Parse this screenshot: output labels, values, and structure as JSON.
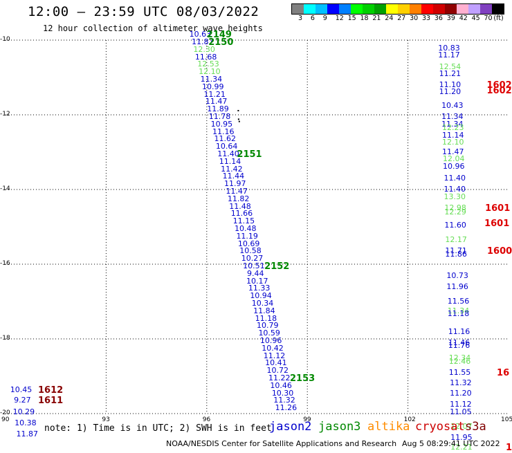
{
  "title": "12:00 – 23:59 UTC 08/03/2022",
  "subtitle": "12 hour collection of altimeter wave heights",
  "colorbar": {
    "colors": [
      "#808080",
      "#00ffff",
      "#00c0ff",
      "#0000ff",
      "#0080ff",
      "#00ff00",
      "#00d000",
      "#00a000",
      "#ffff00",
      "#ffd000",
      "#ff8000",
      "#ff0000",
      "#d00000",
      "#900000",
      "#ffb0d0",
      "#c0a0ff",
      "#8040c0",
      "#000000"
    ],
    "labels": [
      "3",
      "6",
      "9",
      "12",
      "15",
      "18",
      "21",
      "24",
      "27",
      "30",
      "33",
      "36",
      "39",
      "42",
      "45",
      "70",
      "(ft)"
    ]
  },
  "axes": {
    "y_labels": [
      "-10",
      "-12",
      "-14",
      "-16",
      "-18",
      "-20"
    ],
    "x_labels": [
      "90",
      "93",
      "96",
      "99",
      "102",
      "105"
    ]
  },
  "note": "note: 1) Time is in UTC; 2) SWH is in feet",
  "legend": [
    {
      "label": "jason2",
      "color": "#0000cc"
    },
    {
      "label": "jason3",
      "color": "#008800"
    },
    {
      "label": "altika",
      "color": "#ff8c00"
    },
    {
      "label": "cryosat",
      "color": "#cc0000"
    },
    {
      "label": "s3a",
      "color": "#800000"
    }
  ],
  "credit": "NOAA/NESDIS Center for Satellite Applications and Research",
  "timestamp": "Aug  5 08:29:41 UTC 2022",
  "colors": {
    "blue": "#0000cc",
    "green": "#008800",
    "lightgreen": "#66dd55",
    "red": "#dd0000",
    "darkred": "#880000"
  },
  "track_main": [
    {
      "v": "10.63",
      "lon": 95.48,
      "lat": -9.93,
      "c": "blue"
    },
    {
      "v": "11.87",
      "lon": 95.55,
      "lat": -10.13,
      "c": "blue"
    },
    {
      "v": "12.30",
      "lon": 95.6,
      "lat": -10.33,
      "c": "lightgreen"
    },
    {
      "v": "11.68",
      "lon": 95.65,
      "lat": -10.53,
      "c": "blue"
    },
    {
      "v": "12.53",
      "lon": 95.72,
      "lat": -10.73,
      "c": "lightgreen"
    },
    {
      "v": "12.10",
      "lon": 95.76,
      "lat": -10.93,
      "c": "lightgreen"
    },
    {
      "v": "11.34",
      "lon": 95.81,
      "lat": -11.13,
      "c": "blue"
    },
    {
      "v": "10.99",
      "lon": 95.86,
      "lat": -11.33,
      "c": "blue"
    },
    {
      "v": "11.21",
      "lon": 95.91,
      "lat": -11.53,
      "c": "blue"
    },
    {
      "v": "11.47",
      "lon": 95.96,
      "lat": -11.73,
      "c": "blue"
    },
    {
      "v": "11.89",
      "lon": 96.01,
      "lat": -11.93,
      "c": "blue"
    },
    {
      "v": "11.78",
      "lon": 96.06,
      "lat": -12.13,
      "c": "blue"
    },
    {
      "v": "10.95",
      "lon": 96.12,
      "lat": -12.33,
      "c": "blue"
    },
    {
      "v": "11.16",
      "lon": 96.17,
      "lat": -12.53,
      "c": "blue"
    },
    {
      "v": "11.62",
      "lon": 96.22,
      "lat": -12.73,
      "c": "blue"
    },
    {
      "v": "10.64",
      "lon": 96.27,
      "lat": -12.93,
      "c": "blue"
    },
    {
      "v": "11.40",
      "lon": 96.32,
      "lat": -13.13,
      "c": "blue"
    },
    {
      "v": "11.14",
      "lon": 96.37,
      "lat": -13.33,
      "c": "blue"
    },
    {
      "v": "11.42",
      "lon": 96.42,
      "lat": -13.53,
      "c": "blue"
    },
    {
      "v": "11.44",
      "lon": 96.47,
      "lat": -13.73,
      "c": "blue"
    },
    {
      "v": "11.97",
      "lon": 96.52,
      "lat": -13.93,
      "c": "blue"
    },
    {
      "v": "11.47",
      "lon": 96.57,
      "lat": -14.13,
      "c": "blue"
    },
    {
      "v": "11.82",
      "lon": 96.62,
      "lat": -14.33,
      "c": "blue"
    },
    {
      "v": "11.48",
      "lon": 96.67,
      "lat": -14.53,
      "c": "blue"
    },
    {
      "v": "11.66",
      "lon": 96.72,
      "lat": -14.73,
      "c": "blue"
    },
    {
      "v": "11.15",
      "lon": 96.78,
      "lat": -14.93,
      "c": "blue"
    },
    {
      "v": "10.48",
      "lon": 96.83,
      "lat": -15.13,
      "c": "blue"
    },
    {
      "v": "11.19",
      "lon": 96.88,
      "lat": -15.33,
      "c": "blue"
    },
    {
      "v": "10.69",
      "lon": 96.93,
      "lat": -15.53,
      "c": "blue"
    },
    {
      "v": "10.58",
      "lon": 96.98,
      "lat": -15.73,
      "c": "blue"
    },
    {
      "v": "10.27",
      "lon": 97.03,
      "lat": -15.93,
      "c": "blue"
    },
    {
      "v": "10.51",
      "lon": 97.08,
      "lat": -16.13,
      "c": "blue"
    },
    {
      "v": "9.44",
      "lon": 97.2,
      "lat": -16.33,
      "c": "blue"
    },
    {
      "v": "10.17",
      "lon": 97.18,
      "lat": -16.53,
      "c": "blue"
    },
    {
      "v": "11.33",
      "lon": 97.24,
      "lat": -16.73,
      "c": "blue"
    },
    {
      "v": "10.94",
      "lon": 97.29,
      "lat": -16.93,
      "c": "blue"
    },
    {
      "v": "10.34",
      "lon": 97.34,
      "lat": -17.13,
      "c": "blue"
    },
    {
      "v": "11.84",
      "lon": 97.39,
      "lat": -17.33,
      "c": "blue"
    },
    {
      "v": "11.18",
      "lon": 97.44,
      "lat": -17.53,
      "c": "blue"
    },
    {
      "v": "10.79",
      "lon": 97.49,
      "lat": -17.73,
      "c": "blue"
    },
    {
      "v": "10.59",
      "lon": 97.54,
      "lat": -17.93,
      "c": "blue"
    },
    {
      "v": "10.96",
      "lon": 97.59,
      "lat": -18.13,
      "c": "blue"
    },
    {
      "v": "10.42",
      "lon": 97.64,
      "lat": -18.33,
      "c": "blue"
    },
    {
      "v": "11.12",
      "lon": 97.69,
      "lat": -18.53,
      "c": "blue"
    },
    {
      "v": "10.41",
      "lon": 97.74,
      "lat": -18.73,
      "c": "blue"
    },
    {
      "v": "10.72",
      "lon": 97.79,
      "lat": -18.93,
      "c": "blue"
    },
    {
      "v": "11.22",
      "lon": 97.84,
      "lat": -19.13,
      "c": "blue"
    },
    {
      "v": "10.46",
      "lon": 97.89,
      "lat": -19.33,
      "c": "blue"
    },
    {
      "v": "10.30",
      "lon": 97.94,
      "lat": -19.53,
      "c": "blue"
    },
    {
      "v": "11.32",
      "lon": 97.99,
      "lat": -19.73,
      "c": "blue"
    },
    {
      "v": "11.26",
      "lon": 98.04,
      "lat": -19.93,
      "c": "blue"
    }
  ],
  "passes_main": [
    {
      "v": "2149",
      "lon": 96.0,
      "lat": -9.92,
      "c": "green"
    },
    {
      "v": "2150",
      "lon": 96.05,
      "lat": -10.13,
      "c": "green"
    },
    {
      "v": "2151",
      "lon": 96.9,
      "lat": -13.13,
      "c": "green"
    },
    {
      "v": "2152",
      "lon": 97.72,
      "lat": -16.13,
      "c": "green"
    },
    {
      "v": "2153",
      "lon": 98.48,
      "lat": -19.13,
      "c": "green"
    }
  ],
  "track_right": [
    {
      "v": "10.83",
      "lon": 102.9,
      "lat": -10.3,
      "c": "blue"
    },
    {
      "v": "11.17",
      "lon": 102.9,
      "lat": -10.48,
      "c": "blue"
    },
    {
      "v": "12.54",
      "lon": 102.93,
      "lat": -10.8,
      "c": "lightgreen"
    },
    {
      "v": "11.21",
      "lon": 102.93,
      "lat": -10.98,
      "c": "blue"
    },
    {
      "v": "11.10",
      "lon": 102.93,
      "lat": -11.28,
      "c": "blue"
    },
    {
      "v": "11.20",
      "lon": 102.93,
      "lat": -11.46,
      "c": "blue"
    },
    {
      "v": "10.43",
      "lon": 103.0,
      "lat": -11.83,
      "c": "blue"
    },
    {
      "v": "11.34",
      "lon": 103.0,
      "lat": -12.13,
      "c": "blue"
    },
    {
      "v": "11.34",
      "lon": 103.0,
      "lat": -12.33,
      "c": "blue"
    },
    {
      "v": "12.23",
      "lon": 103.02,
      "lat": -12.43,
      "c": "lightgreen"
    },
    {
      "v": "11.14",
      "lon": 103.02,
      "lat": -12.63,
      "c": "blue"
    },
    {
      "v": "12.10",
      "lon": 103.02,
      "lat": -12.81,
      "c": "lightgreen"
    },
    {
      "v": "11.47",
      "lon": 103.02,
      "lat": -13.08,
      "c": "blue"
    },
    {
      "v": "12.04",
      "lon": 103.04,
      "lat": -13.26,
      "c": "lightgreen"
    },
    {
      "v": "10.96",
      "lon": 103.04,
      "lat": -13.46,
      "c": "blue"
    },
    {
      "v": "11.40",
      "lon": 103.07,
      "lat": -13.78,
      "c": "blue"
    },
    {
      "v": "11.40",
      "lon": 103.07,
      "lat": -14.08,
      "c": "blue"
    },
    {
      "v": "13.30",
      "lon": 103.07,
      "lat": -14.28,
      "c": "lightgreen"
    },
    {
      "v": "12.98",
      "lon": 103.09,
      "lat": -14.58,
      "c": "lightgreen"
    },
    {
      "v": "12.29",
      "lon": 103.09,
      "lat": -14.68,
      "c": "lightgreen"
    },
    {
      "v": "11.60",
      "lon": 103.09,
      "lat": -15.03,
      "c": "blue"
    },
    {
      "v": "12.17",
      "lon": 103.11,
      "lat": -15.43,
      "c": "lightgreen"
    },
    {
      "v": "11.71",
      "lon": 103.11,
      "lat": -15.73,
      "c": "blue"
    },
    {
      "v": "11.86",
      "lon": 103.11,
      "lat": -15.81,
      "c": "blue"
    },
    {
      "v": "10.73",
      "lon": 103.15,
      "lat": -16.38,
      "c": "blue"
    },
    {
      "v": "11.96",
      "lon": 103.15,
      "lat": -16.68,
      "c": "blue"
    },
    {
      "v": "11.56",
      "lon": 103.18,
      "lat": -17.08,
      "c": "blue"
    },
    {
      "v": "11.34",
      "lon": 103.18,
      "lat": -17.33,
      "c": "lightgreen"
    },
    {
      "v": "11.18",
      "lon": 103.18,
      "lat": -17.41,
      "c": "blue"
    },
    {
      "v": "11.16",
      "lon": 103.2,
      "lat": -17.88,
      "c": "blue"
    },
    {
      "v": "11.46",
      "lon": 103.2,
      "lat": -18.18,
      "c": "blue"
    },
    {
      "v": "11.76",
      "lon": 103.2,
      "lat": -18.26,
      "c": "blue"
    },
    {
      "v": "12.34",
      "lon": 103.22,
      "lat": -18.6,
      "c": "lightgreen"
    },
    {
      "v": "12.46",
      "lon": 103.22,
      "lat": -18.68,
      "c": "lightgreen"
    },
    {
      "v": "11.55",
      "lon": 103.22,
      "lat": -18.98,
      "c": "blue"
    },
    {
      "v": "11.32",
      "lon": 103.25,
      "lat": -19.26,
      "c": "blue"
    },
    {
      "v": "11.20",
      "lon": 103.25,
      "lat": -19.53,
      "c": "blue"
    },
    {
      "v": "11.12",
      "lon": 103.25,
      "lat": -19.83,
      "c": "blue"
    },
    {
      "v": "11.05",
      "lon": 103.25,
      "lat": -20.03,
      "c": "blue"
    },
    {
      "v": "12.07",
      "lon": 103.27,
      "lat": -20.43,
      "c": "lightgreen"
    },
    {
      "v": "11.95",
      "lon": 103.27,
      "lat": -20.73,
      "c": "blue"
    },
    {
      "v": "12.21",
      "lon": 103.27,
      "lat": -20.98,
      "c": "lightgreen"
    }
  ],
  "passes_right": [
    {
      "v": "1602",
      "lon": 104.35,
      "lat": -11.28,
      "c": "red"
    },
    {
      "v": "1602",
      "lon": 104.35,
      "lat": -11.43,
      "c": "red"
    },
    {
      "v": "1601",
      "lon": 104.3,
      "lat": -14.58,
      "c": "red"
    },
    {
      "v": "1601",
      "lon": 104.28,
      "lat": -14.98,
      "c": "red"
    },
    {
      "v": "1600",
      "lon": 104.4,
      "lat": -15.73,
      "c": "red"
    },
    {
      "v": "16",
      "lon": 104.65,
      "lat": -18.98,
      "c": "red"
    },
    {
      "v": "1",
      "lon": 104.97,
      "lat": -20.98,
      "c": "red"
    }
  ],
  "track_left": [
    {
      "v": "10.45",
      "lon": 90.14,
      "lat": -19.45,
      "c": "blue"
    },
    {
      "v": "9.27",
      "lon": 90.25,
      "lat": -19.73,
      "c": "blue"
    },
    {
      "v": "10.29",
      "lon": 90.22,
      "lat": -20.03,
      "c": "blue"
    },
    {
      "v": "10.38",
      "lon": 90.27,
      "lat": -20.33,
      "c": "blue"
    },
    {
      "v": "11.87",
      "lon": 90.32,
      "lat": -20.63,
      "c": "blue"
    }
  ],
  "passes_left": [
    {
      "v": "1612",
      "lon": 90.97,
      "lat": -19.45,
      "c": "darkred"
    },
    {
      "v": "1611",
      "lon": 90.97,
      "lat": -19.73,
      "c": "darkred"
    }
  ]
}
